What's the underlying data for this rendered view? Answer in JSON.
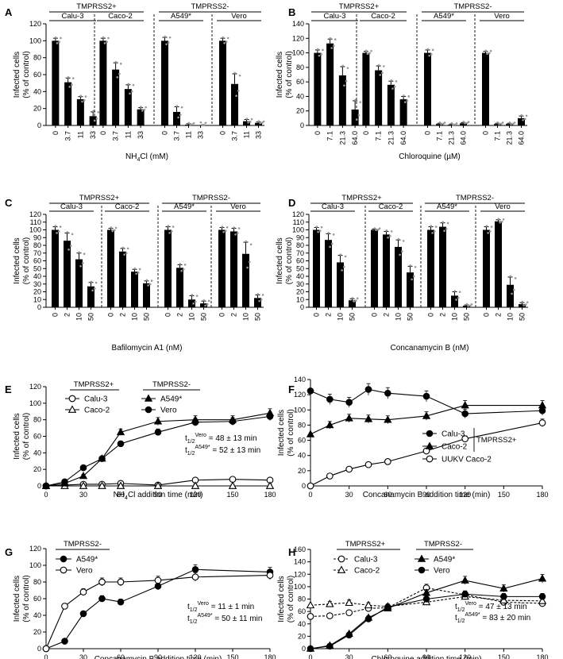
{
  "chart_data": [
    {
      "id": "A",
      "type": "bar",
      "ylabel": [
        "Infected cells",
        "(% of control)"
      ],
      "ylim": [
        0,
        120
      ],
      "yticks": [
        0,
        20,
        40,
        60,
        80,
        100,
        120
      ],
      "xlabel": "NH4Cl (mM)",
      "xlabel_main": "NH",
      "xlabel_sub": "4",
      "xlabel_rest": "Cl (mM)",
      "supergroups": [
        "TMPRSS2+",
        "TMPRSS2-"
      ],
      "groups": [
        {
          "name": "Calu-3",
          "doses": [
            "0",
            "3.7",
            "11",
            "33"
          ],
          "values": [
            100,
            51,
            31,
            11
          ],
          "errors": [
            3,
            5,
            3,
            5
          ]
        },
        {
          "name": "Caco-2",
          "doses": [
            "0",
            "3.7",
            "11",
            "33"
          ],
          "values": [
            100,
            66,
            43,
            19
          ],
          "errors": [
            3,
            8,
            5,
            2
          ]
        },
        {
          "name": "A549*",
          "doses": [
            "0",
            "3.7",
            "11",
            "33"
          ],
          "values": [
            100,
            16,
            1,
            0
          ],
          "errors": [
            4,
            6,
            1,
            0
          ]
        },
        {
          "name": "Vero",
          "doses": [
            "0",
            "3.7",
            "11",
            "33"
          ],
          "values": [
            100,
            49,
            5,
            3
          ],
          "errors": [
            3,
            12,
            2,
            1
          ]
        }
      ]
    },
    {
      "id": "B",
      "type": "bar",
      "ylabel": [
        "Infected cells",
        "(% of control)"
      ],
      "ylim": [
        0,
        140
      ],
      "yticks": [
        0,
        20,
        40,
        60,
        80,
        100,
        120,
        140
      ],
      "xlabel": "Chloroquine (µM)",
      "supergroups": [
        "TMPRSS2+",
        "TMPRSS2-"
      ],
      "groups": [
        {
          "name": "Calu-3",
          "doses": [
            "0",
            "7.1",
            "21.3",
            "64.0"
          ],
          "values": [
            100,
            113,
            69,
            22
          ],
          "errors": [
            4,
            6,
            12,
            12
          ]
        },
        {
          "name": "Caco-2",
          "doses": [
            "0",
            "7.1",
            "21.3",
            "64.0"
          ],
          "values": [
            100,
            76,
            56,
            36
          ],
          "errors": [
            2,
            6,
            5,
            4
          ]
        },
        {
          "name": "A549*",
          "doses": [
            "0",
            "7.1",
            "21.3",
            "64.0"
          ],
          "values": [
            100,
            2,
            1,
            3
          ],
          "errors": [
            4,
            1,
            1,
            1
          ]
        },
        {
          "name": "Vero",
          "doses": [
            "0",
            "7.1",
            "21.3",
            "64.0"
          ],
          "values": [
            100,
            2,
            2,
            10
          ],
          "errors": [
            2,
            1,
            1,
            3
          ]
        }
      ]
    },
    {
      "id": "C",
      "type": "bar",
      "ylabel": [
        "Infected cells",
        "(% of control)"
      ],
      "ylim": [
        0,
        120
      ],
      "yticks": [
        0,
        10,
        20,
        30,
        40,
        50,
        60,
        70,
        80,
        90,
        100,
        110,
        120
      ],
      "xlabel": "Bafilomycin A1 (nM)",
      "supergroups": [
        "TMPRSS2+",
        "TMPRSS2-"
      ],
      "groups": [
        {
          "name": "Calu-3",
          "doses": [
            "0",
            "2",
            "10",
            "50"
          ],
          "values": [
            100,
            86,
            62,
            27
          ],
          "errors": [
            4,
            10,
            8,
            5
          ]
        },
        {
          "name": "Caco-2",
          "doses": [
            "0",
            "2",
            "10",
            "50"
          ],
          "values": [
            100,
            72,
            46,
            31
          ],
          "errors": [
            2,
            4,
            3,
            3
          ]
        },
        {
          "name": "A549*",
          "doses": [
            "0",
            "2",
            "10",
            "50"
          ],
          "values": [
            100,
            51,
            10,
            5
          ],
          "errors": [
            4,
            4,
            5,
            3
          ]
        },
        {
          "name": "Vero",
          "doses": [
            "0",
            "2",
            "10",
            "50"
          ],
          "values": [
            100,
            98,
            69,
            12
          ],
          "errors": [
            3,
            4,
            15,
            4
          ]
        }
      ]
    },
    {
      "id": "D",
      "type": "bar",
      "ylabel": [
        "Infected cells",
        "(% of control)"
      ],
      "ylim": [
        0,
        120
      ],
      "yticks": [
        0,
        10,
        20,
        30,
        40,
        50,
        60,
        70,
        80,
        90,
        100,
        110,
        120
      ],
      "xlabel": "Concanamycin B (nM)",
      "supergroups": [
        "TMPRSS2+",
        "TMPRSS2-"
      ],
      "groups": [
        {
          "name": "Calu-3",
          "doses": [
            "0",
            "2",
            "10",
            "50"
          ],
          "values": [
            100,
            87,
            58,
            9
          ],
          "errors": [
            3,
            8,
            9,
            2
          ]
        },
        {
          "name": "Caco-2",
          "doses": [
            "0",
            "2",
            "10",
            "50"
          ],
          "values": [
            100,
            94,
            78,
            45
          ],
          "errors": [
            1,
            4,
            9,
            8
          ]
        },
        {
          "name": "A549*",
          "doses": [
            "0",
            "2",
            "10",
            "50"
          ],
          "values": [
            100,
            104,
            15,
            2
          ],
          "errors": [
            4,
            5,
            5,
            1
          ]
        },
        {
          "name": "Vero",
          "doses": [
            "0",
            "2",
            "10",
            "50"
          ],
          "values": [
            100,
            111,
            29,
            4
          ],
          "errors": [
            4,
            2,
            10,
            2
          ]
        }
      ]
    },
    {
      "id": "E",
      "type": "line",
      "ylabel": [
        "Infected cells",
        "(% of control)"
      ],
      "ylim": [
        0,
        120
      ],
      "yticks": [
        0,
        20,
        40,
        60,
        80,
        100,
        120
      ],
      "xlim": [
        0,
        180
      ],
      "xticks": [
        0,
        30,
        60,
        90,
        120,
        150,
        180
      ],
      "xlabel": "NH4Cl addition time (min)",
      "xlabel_main": "NH",
      "xlabel_sub": "4",
      "xlabel_rest": "Cl addition time (min)",
      "legend_groups": [
        "TMPRSS2+",
        "TMPRSS2-"
      ],
      "series": [
        {
          "name": "Calu-3",
          "marker": "open-circle",
          "x": [
            0,
            15,
            30,
            45,
            60,
            90,
            120,
            150,
            180
          ],
          "y": [
            0,
            1,
            2,
            2,
            3,
            1,
            7,
            8,
            7
          ]
        },
        {
          "name": "Caco-2",
          "marker": "open-triangle",
          "x": [
            0,
            15,
            30,
            45,
            60,
            90,
            120,
            150,
            180
          ],
          "y": [
            0,
            0,
            0,
            0,
            0,
            0,
            0,
            0,
            0
          ]
        },
        {
          "name": "A549*",
          "marker": "filled-triangle",
          "x": [
            0,
            15,
            30,
            45,
            60,
            90,
            120,
            150,
            180
          ],
          "y": [
            0,
            3,
            12,
            33,
            65,
            78,
            80,
            80,
            88
          ]
        },
        {
          "name": "Vero",
          "marker": "filled-circle",
          "x": [
            0,
            15,
            30,
            45,
            60,
            90,
            120,
            150,
            180
          ],
          "y": [
            0,
            5,
            22,
            33,
            51,
            65,
            77,
            78,
            84
          ]
        }
      ],
      "annotations": [
        {
          "pre": "t",
          "sub": "1/2",
          "sup": "Vero",
          "post": " = 48 ± 13 min"
        },
        {
          "pre": "t",
          "sub": "1/2",
          "sup": "A549*",
          "post": " = 52 ± 13 min"
        }
      ]
    },
    {
      "id": "F",
      "type": "line",
      "ylabel": [
        "Infected cells",
        "(% of control)"
      ],
      "ylim": [
        0,
        140
      ],
      "yticks": [
        0,
        20,
        40,
        60,
        80,
        100,
        120,
        140
      ],
      "xlim": [
        0,
        180
      ],
      "xticks": [
        0,
        30,
        60,
        90,
        120,
        150,
        180
      ],
      "xlabel": "Concanamycin B addition time (min)",
      "legend_group": "TMPRSS2+",
      "series": [
        {
          "name": "Calu-3",
          "marker": "filled-circle",
          "x": [
            0,
            15,
            30,
            45,
            60,
            90,
            120,
            180
          ],
          "y": [
            125,
            114,
            110,
            127,
            122,
            118,
            95,
            99
          ]
        },
        {
          "name": "Caco-2",
          "marker": "filled-triangle",
          "x": [
            0,
            15,
            30,
            45,
            60,
            90,
            120,
            180
          ],
          "y": [
            68,
            80,
            89,
            88,
            87,
            92,
            106,
            106
          ]
        },
        {
          "name": "UUKV Caco-2",
          "marker": "open-circle",
          "x": [
            0,
            15,
            30,
            45,
            60,
            90,
            120,
            180
          ],
          "y": [
            0,
            13,
            22,
            28,
            32,
            46,
            62,
            83
          ]
        }
      ]
    },
    {
      "id": "G",
      "type": "line",
      "ylabel": [
        "Infected cells",
        "(% of control)"
      ],
      "ylim": [
        0,
        120
      ],
      "yticks": [
        0,
        20,
        40,
        60,
        80,
        100,
        120
      ],
      "xlim": [
        0,
        180
      ],
      "xticks": [
        0,
        30,
        60,
        90,
        120,
        150,
        180
      ],
      "xlabel": "Concanamycin B addition time (min)",
      "legend_group": "TMPRSS2-",
      "series": [
        {
          "name": "A549*",
          "marker": "filled-circle",
          "x": [
            0,
            15,
            30,
            45,
            60,
            90,
            120,
            180
          ],
          "y": [
            0,
            9,
            42,
            60,
            56,
            75,
            95,
            92
          ]
        },
        {
          "name": "Vero",
          "marker": "open-circle",
          "x": [
            0,
            15,
            30,
            45,
            60,
            90,
            120,
            180
          ],
          "y": [
            0,
            51,
            68,
            80,
            80,
            82,
            86,
            88
          ]
        }
      ],
      "annotations": [
        {
          "pre": "t",
          "sub": "1/2",
          "sup": "Vero",
          "post": " = 11 ± 1 min"
        },
        {
          "pre": "t",
          "sub": "1/2",
          "sup": "A549*",
          "post": " = 50 ± 11 min"
        }
      ]
    },
    {
      "id": "H",
      "type": "line",
      "ylabel": [
        "Infected cells",
        "(% of control)"
      ],
      "ylim": [
        0,
        160
      ],
      "yticks": [
        0,
        20,
        40,
        60,
        80,
        100,
        120,
        140,
        160
      ],
      "xlim": [
        0,
        180
      ],
      "xticks": [
        0,
        30,
        60,
        90,
        120,
        150,
        180
      ],
      "xlabel": "Chloroquine addition time (min)",
      "legend_groups": [
        "TMPRSS2+",
        "TMPRSS2-"
      ],
      "series": [
        {
          "name": "Calu-3",
          "marker": "open-circle",
          "dashed": true,
          "x": [
            0,
            15,
            30,
            45,
            60,
            90,
            120,
            150,
            180
          ],
          "y": [
            52,
            53,
            58,
            65,
            66,
            98,
            87,
            75,
            73
          ]
        },
        {
          "name": "Caco-2",
          "marker": "open-triangle",
          "dashed": true,
          "x": [
            0,
            15,
            30,
            45,
            60,
            90,
            120,
            150,
            180
          ],
          "y": [
            70,
            72,
            74,
            70,
            68,
            75,
            84,
            78,
            77
          ]
        },
        {
          "name": "A549*",
          "marker": "filled-triangle",
          "x": [
            0,
            15,
            30,
            45,
            60,
            90,
            120,
            150,
            180
          ],
          "y": [
            0,
            5,
            24,
            50,
            65,
            90,
            110,
            97,
            113
          ]
        },
        {
          "name": "Vero",
          "marker": "filled-circle",
          "x": [
            0,
            15,
            30,
            45,
            60,
            90,
            120,
            150,
            180
          ],
          "y": [
            0,
            4,
            22,
            48,
            67,
            80,
            88,
            84,
            84
          ]
        }
      ],
      "annotations": [
        {
          "pre": "t",
          "sub": "1/2",
          "sup": "Vero",
          "post": " = 47 ± 13 min"
        },
        {
          "pre": "t",
          "sub": "1/2",
          "sup": "A549*",
          "post": " = 83 ± 20 min"
        }
      ]
    }
  ]
}
